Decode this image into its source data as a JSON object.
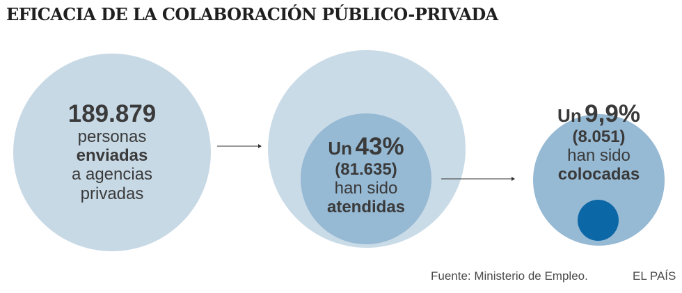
{
  "title": "EFICACIA DE LA COLABORACIÓN PÚBLICO-PRIVADA",
  "colors": {
    "circle_light": "#c8d9e6",
    "circle_mid": "#96b9d4",
    "circle_dark": "#0c67a6",
    "text": "#3a3a3a"
  },
  "stage1": {
    "number": "189.879",
    "line1": "personas",
    "line2": "enviadas",
    "line3": "a agencias",
    "line4": "privadas"
  },
  "stage2": {
    "prefix": "Un",
    "percent": "43%",
    "count": "(81.635)",
    "line1": "han sido",
    "line2": "atendidas"
  },
  "stage3": {
    "prefix": "Un",
    "percent": "9,9%",
    "count": "(8.051)",
    "line1": "han sido",
    "line2": "colocadas"
  },
  "footer": {
    "source": "Fuente: Ministerio de Empleo.",
    "brand": "EL PAÍS"
  }
}
